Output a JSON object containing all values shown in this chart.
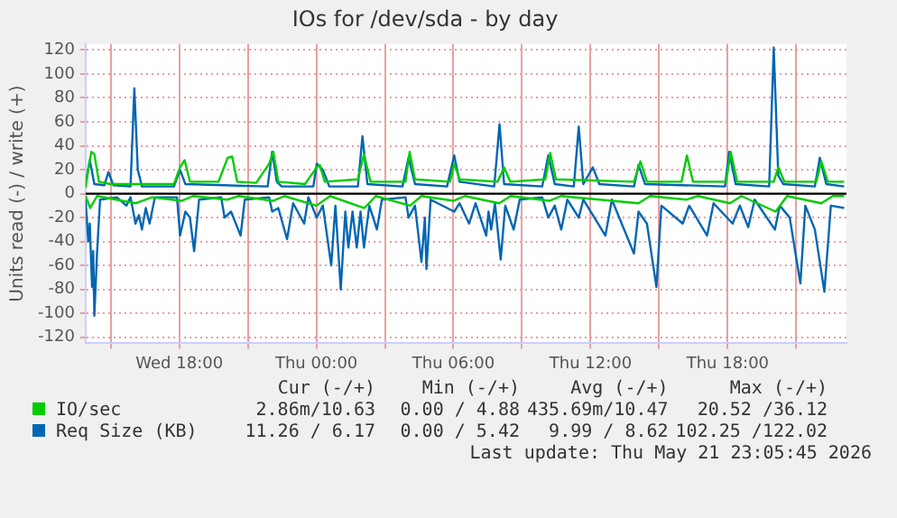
{
  "chart_data": {
    "type": "line",
    "title": "IOs for /dev/sda - by day",
    "ylabel": "Units read (-) / write (+)",
    "xlim": [
      "2026-05-20T13:54",
      "2026-05-21T23:12"
    ],
    "xticks": [
      {
        "value": "2026-05-20T15:00",
        "label": null
      },
      {
        "value": "2026-05-20T18:00",
        "label": "Wed 18:00"
      },
      {
        "value": "2026-05-20T21:00",
        "label": null
      },
      {
        "value": "2026-05-21T00:00",
        "label": "Thu 00:00"
      },
      {
        "value": "2026-05-21T03:00",
        "label": null
      },
      {
        "value": "2026-05-21T06:00",
        "label": "Thu 06:00"
      },
      {
        "value": "2026-05-21T09:00",
        "label": null
      },
      {
        "value": "2026-05-21T12:00",
        "label": "Thu 12:00"
      },
      {
        "value": "2026-05-21T15:00",
        "label": null
      },
      {
        "value": "2026-05-21T18:00",
        "label": "Thu 18:00"
      },
      {
        "value": "2026-05-21T21:00",
        "label": null
      }
    ],
    "ylim": [
      -125,
      125
    ],
    "yticks": [
      -120,
      -100,
      -80,
      -60,
      -40,
      -20,
      0,
      20,
      40,
      60,
      80,
      100,
      120
    ],
    "grid": true,
    "legend": "bottom",
    "marker": "none",
    "line_style": "solid",
    "ref_lines": [
      {
        "axis": "y",
        "value": 0,
        "color": "#000000"
      }
    ],
    "series": [
      {
        "color": "#00cc00",
        "x": [
          "2026-05-20T13:54",
          "2026-05-20T14:06",
          "2026-05-20T14:24",
          "2026-05-20T16:06",
          "2026-05-20T16:48",
          "2026-05-20T18:06",
          "2026-05-20T18:36",
          "2026-05-20T20:06",
          "2026-05-20T20:36",
          "2026-05-20T22:06",
          "2026-05-20T22:36",
          "2026-05-21T00:00",
          "2026-05-21T00:36",
          "2026-05-21T02:06",
          "2026-05-21T02:36",
          "2026-05-21T04:06",
          "2026-05-21T04:36",
          "2026-05-21T06:00",
          "2026-05-21T06:30",
          "2026-05-21T08:00",
          "2026-05-21T08:30",
          "2026-05-21T10:12",
          "2026-05-21T10:42",
          "2026-05-21T14:06",
          "2026-05-21T14:36",
          "2026-05-21T16:12",
          "2026-05-21T16:42",
          "2026-05-21T18:06",
          "2026-05-21T18:36",
          "2026-05-21T20:06",
          "2026-05-21T20:36",
          "2026-05-21T22:06",
          "2026-05-21T22:36",
          "2026-05-21T23:06"
        ],
        "values": [
          -2,
          -12,
          -2,
          -8,
          -3,
          -6,
          -2,
          -5,
          -2,
          -6,
          -2,
          -10,
          -2,
          -12,
          -2,
          -10,
          -2,
          -6,
          -2,
          -8,
          -2,
          -6,
          -2,
          -8,
          -2,
          -5,
          -2,
          -8,
          -2,
          -15,
          -2,
          -8,
          -2,
          -2
        ]
      },
      {
        "name": "IO/sec",
        "color": "#00cc00",
        "x": [
          "2026-05-20T13:54",
          "2026-05-20T14:01",
          "2026-05-20T14:09",
          "2026-05-20T14:17",
          "2026-05-20T14:29",
          "2026-05-20T14:59",
          "2026-05-20T17:46",
          "2026-05-20T18:02",
          "2026-05-20T18:14",
          "2026-05-20T18:28",
          "2026-05-20T19:43",
          "2026-05-20T20:07",
          "2026-05-20T20:19",
          "2026-05-20T20:32",
          "2026-05-20T21:22",
          "2026-05-20T21:56",
          "2026-05-20T22:07",
          "2026-05-20T22:20",
          "2026-05-20T23:30",
          "2026-05-21T00:01",
          "2026-05-21T00:09",
          "2026-05-21T00:22",
          "2026-05-21T01:49",
          "2026-05-21T02:05",
          "2026-05-21T02:22",
          "2026-05-21T03:54",
          "2026-05-21T04:05",
          "2026-05-21T04:19",
          "2026-05-21T05:51",
          "2026-05-21T06:02",
          "2026-05-21T06:16",
          "2026-05-21T07:56",
          "2026-05-21T08:13",
          "2026-05-21T08:29",
          "2026-05-21T10:01",
          "2026-05-21T10:14",
          "2026-05-21T10:29",
          "2026-05-21T13:54",
          "2026-05-21T14:11",
          "2026-05-21T14:28",
          "2026-05-21T15:59",
          "2026-05-21T16:13",
          "2026-05-21T16:29",
          "2026-05-21T17:56",
          "2026-05-21T18:08",
          "2026-05-21T18:25",
          "2026-05-21T20:01",
          "2026-05-21T20:13",
          "2026-05-21T20:29",
          "2026-05-21T21:53",
          "2026-05-21T22:06",
          "2026-05-21T22:23",
          "2026-05-21T23:06"
        ],
        "values": [
          5,
          20,
          35,
          33,
          10,
          8,
          8,
          22,
          28,
          10,
          10,
          30,
          31,
          10,
          9,
          25,
          35,
          10,
          8,
          22,
          24,
          10,
          12,
          33,
          10,
          10,
          35,
          12,
          10,
          25,
          12,
          10,
          22,
          10,
          12,
          34,
          12,
          10,
          27,
          10,
          10,
          32,
          10,
          10,
          35,
          10,
          10,
          22,
          10,
          10,
          27,
          10,
          10
        ]
      },
      {
        "color": "#0066b3",
        "x": [
          "2026-05-20T13:54",
          "2026-05-20T14:01",
          "2026-05-20T14:05",
          "2026-05-20T14:11",
          "2026-05-20T14:14",
          "2026-05-20T14:17",
          "2026-05-20T14:24",
          "2026-05-20T14:32",
          "2026-05-20T15:16",
          "2026-05-20T15:41",
          "2026-05-20T15:52",
          "2026-05-20T16:05",
          "2026-05-20T16:14",
          "2026-05-20T16:22",
          "2026-05-20T16:32",
          "2026-05-20T16:42",
          "2026-05-20T16:56",
          "2026-05-20T17:54",
          "2026-05-20T18:02",
          "2026-05-20T18:16",
          "2026-05-20T18:28",
          "2026-05-20T18:39",
          "2026-05-20T18:52",
          "2026-05-20T19:50",
          "2026-05-20T19:59",
          "2026-05-20T20:16",
          "2026-05-20T20:41",
          "2026-05-20T20:52",
          "2026-05-20T21:56",
          "2026-05-20T22:04",
          "2026-05-20T22:20",
          "2026-05-20T22:43",
          "2026-05-20T22:59",
          "2026-05-20T23:28",
          "2026-05-20T23:39",
          "2026-05-21T00:01",
          "2026-05-21T00:17",
          "2026-05-21T00:39",
          "2026-05-21T00:50",
          "2026-05-21T01:04",
          "2026-05-21T01:16",
          "2026-05-21T01:24",
          "2026-05-21T01:35",
          "2026-05-21T01:46",
          "2026-05-21T01:56",
          "2026-05-21T02:05",
          "2026-05-21T02:19",
          "2026-05-21T02:39",
          "2026-05-21T02:52",
          "2026-05-21T03:54",
          "2026-05-21T04:02",
          "2026-05-21T04:19",
          "2026-05-21T04:36",
          "2026-05-21T04:45",
          "2026-05-21T04:49",
          "2026-05-21T05:00",
          "2026-05-21T06:02",
          "2026-05-21T06:16",
          "2026-05-21T06:41",
          "2026-05-21T06:58",
          "2026-05-21T07:26",
          "2026-05-21T07:32",
          "2026-05-21T07:39",
          "2026-05-21T07:49",
          "2026-05-21T08:04",
          "2026-05-21T08:16",
          "2026-05-21T08:38",
          "2026-05-21T08:54",
          "2026-05-21T09:53",
          "2026-05-21T10:09",
          "2026-05-21T10:26",
          "2026-05-21T10:43",
          "2026-05-21T10:59",
          "2026-05-21T11:29",
          "2026-05-21T11:41",
          "2026-05-21T12:39",
          "2026-05-21T12:56",
          "2026-05-21T13:54",
          "2026-05-21T14:06",
          "2026-05-21T14:28",
          "2026-05-21T14:53",
          "2026-05-21T15:06",
          "2026-05-21T16:02",
          "2026-05-21T16:19",
          "2026-05-21T17:06",
          "2026-05-21T17:23",
          "2026-05-21T18:13",
          "2026-05-21T18:32",
          "2026-05-21T18:54",
          "2026-05-21T19:11",
          "2026-05-21T20:04",
          "2026-05-21T20:17",
          "2026-05-21T20:43",
          "2026-05-21T21:11",
          "2026-05-21T21:24",
          "2026-05-21T21:49",
          "2026-05-21T22:14",
          "2026-05-21T22:31",
          "2026-05-21T23:06"
        ],
        "values": [
          -5,
          -40,
          -25,
          -78,
          -48,
          -102,
          -50,
          -5,
          -3,
          -10,
          -3,
          -25,
          -18,
          -30,
          -12,
          -25,
          -3,
          -3,
          -35,
          -15,
          -20,
          -48,
          -5,
          -3,
          -20,
          -15,
          -35,
          -5,
          -3,
          -15,
          -12,
          -38,
          -8,
          -25,
          -3,
          -20,
          -10,
          -60,
          -10,
          -80,
          -15,
          -45,
          -15,
          -45,
          -15,
          -45,
          -10,
          -30,
          -5,
          -3,
          -20,
          -10,
          -57,
          -20,
          -63,
          -5,
          -15,
          -8,
          -25,
          -8,
          -35,
          -15,
          -30,
          -8,
          -55,
          -10,
          -30,
          -5,
          -3,
          -20,
          -10,
          -30,
          -5,
          -20,
          -5,
          -35,
          -5,
          -50,
          -15,
          -25,
          -78,
          -10,
          -25,
          -10,
          -35,
          -8,
          -25,
          -10,
          -28,
          -5,
          -30,
          -10,
          -20,
          -75,
          -10,
          -30,
          -82,
          -10,
          -12
        ]
      },
      {
        "name": "Req Size (KB)",
        "color": "#0066b3",
        "x": [
          "2026-05-20T13:54",
          "2026-05-20T14:05",
          "2026-05-20T14:17",
          "2026-05-20T14:43",
          "2026-05-20T14:54",
          "2026-05-20T15:07",
          "2026-05-20T15:52",
          "2026-05-20T16:02",
          "2026-05-20T16:11",
          "2026-05-20T16:22",
          "2026-05-20T17:46",
          "2026-05-20T18:02",
          "2026-05-20T18:16",
          "2026-05-20T19:59",
          "2026-05-20T21:52",
          "2026-05-20T22:04",
          "2026-05-20T22:16",
          "2026-05-20T22:29",
          "2026-05-20T23:52",
          "2026-05-21T00:01",
          "2026-05-21T00:17",
          "2026-05-21T00:34",
          "2026-05-21T01:49",
          "2026-05-21T02:01",
          "2026-05-21T02:14",
          "2026-05-21T03:46",
          "2026-05-21T04:02",
          "2026-05-21T04:19",
          "2026-05-21T05:43",
          "2026-05-21T06:02",
          "2026-05-21T06:16",
          "2026-05-21T07:47",
          "2026-05-21T08:01",
          "2026-05-21T08:13",
          "2026-05-21T09:53",
          "2026-05-21T10:09",
          "2026-05-21T10:26",
          "2026-05-21T11:16",
          "2026-05-21T11:29",
          "2026-05-21T11:41",
          "2026-05-21T12:06",
          "2026-05-21T12:23",
          "2026-05-21T13:54",
          "2026-05-21T14:06",
          "2026-05-21T14:23",
          "2026-05-21T17:53",
          "2026-05-21T18:04",
          "2026-05-21T18:21",
          "2026-05-21T19:49",
          "2026-05-21T20:01",
          "2026-05-21T20:13",
          "2026-05-21T20:26",
          "2026-05-21T21:49",
          "2026-05-21T22:02",
          "2026-05-21T22:19",
          "2026-05-21T23:06"
        ],
        "values": [
          8,
          28,
          8,
          7,
          18,
          7,
          6,
          88,
          20,
          6,
          6,
          20,
          8,
          7,
          6,
          35,
          10,
          6,
          6,
          25,
          20,
          6,
          6,
          48,
          8,
          6,
          30,
          8,
          6,
          32,
          10,
          6,
          58,
          8,
          6,
          32,
          8,
          6,
          56,
          8,
          22,
          8,
          6,
          24,
          8,
          6,
          35,
          8,
          6,
          122,
          15,
          8,
          6,
          30,
          8,
          6
        ]
      }
    ],
    "annotations": [
      "Cur (-/+)",
      "Min (-/+)",
      "Avg (-/+)",
      "Max (-/+)",
      "2.86m/10.63",
      "0.00 / 4.88",
      "435.69m/10.47",
      "20.52 /36.12",
      "11.26 / 6.17",
      "0.00 / 5.42",
      "9.99 / 8.62",
      "102.25 /122.02",
      "Last update: Thu May 21 23:05:45 2026"
    ]
  }
}
